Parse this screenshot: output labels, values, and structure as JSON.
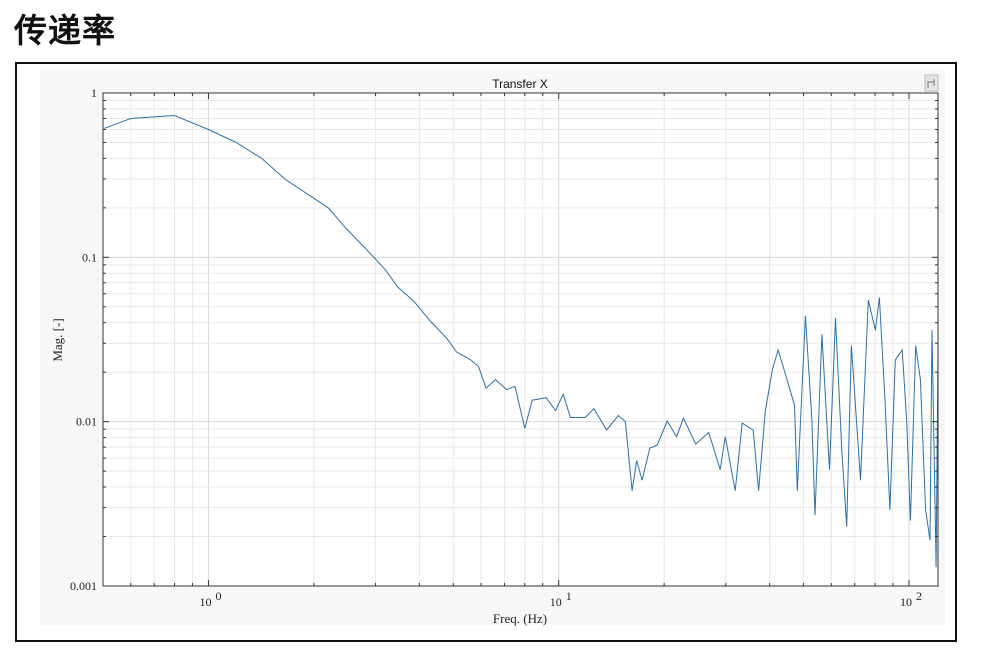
{
  "heading": "传递率",
  "chart_data": {
    "type": "line",
    "title": "Transfer X",
    "xlabel": "Freq. (Hz)",
    "ylabel": "Mag. [-]",
    "xscale": "log",
    "yscale": "log",
    "xlim": [
      0.5,
      121
    ],
    "ylim": [
      0.001,
      1
    ],
    "grid": true,
    "xticks": [
      {
        "value": 1,
        "base": "10",
        "exp": "0"
      },
      {
        "value": 10,
        "base": "10",
        "exp": "1"
      },
      {
        "value": 100,
        "base": "10",
        "exp": "2"
      }
    ],
    "yticks": [
      {
        "value": 1,
        "label": "1"
      },
      {
        "value": 0.1,
        "label": "0.1"
      },
      {
        "value": 0.01,
        "label": "0.01"
      },
      {
        "value": 0.001,
        "label": "0.001"
      }
    ],
    "series_color": "#2f6fa6",
    "series": [
      {
        "name": "Transfer X",
        "x": [
          0.505,
          0.6,
          0.8,
          1.0,
          1.2,
          1.42,
          1.65,
          2.2,
          2.47,
          2.8,
          3.2,
          3.47,
          3.86,
          4.3,
          4.8,
          5.1,
          5.6,
          5.9,
          6.2,
          6.6,
          7.1,
          7.5,
          8.0,
          8.4,
          9.2,
          9.8,
          10.3,
          10.8,
          11.9,
          12.6,
          13.7,
          14.8,
          15.5,
          16.2,
          16.7,
          17.3,
          18.2,
          19.1,
          20.4,
          21.7,
          22.7,
          24.6,
          26.8,
          28.9,
          29.9,
          31.9,
          33.4,
          35.9,
          37.2,
          38.9,
          40.7,
          42.3,
          44.4,
          47.1,
          48.0,
          50.6,
          52.8,
          53.9,
          56.4,
          59.3,
          61.7,
          64.3,
          66.4,
          68.5,
          72.7,
          76.5,
          80.2,
          82.3,
          85.4,
          88.2,
          91.4,
          95.6,
          98.5,
          100.9,
          104.5,
          107.8,
          111.5,
          114.8,
          116.3,
          119.5,
          121
        ],
        "y": [
          0.61,
          0.7,
          0.73,
          0.6,
          0.5,
          0.4,
          0.3,
          0.2,
          0.15,
          0.114,
          0.084,
          0.066,
          0.054,
          0.041,
          0.032,
          0.0266,
          0.0238,
          0.0217,
          0.016,
          0.018,
          0.0157,
          0.0164,
          0.0091,
          0.0135,
          0.014,
          0.0117,
          0.0147,
          0.0106,
          0.0106,
          0.012,
          0.0089,
          0.0109,
          0.01,
          0.0038,
          0.0058,
          0.0044,
          0.0069,
          0.0072,
          0.0101,
          0.0081,
          0.0105,
          0.0073,
          0.0086,
          0.0051,
          0.0081,
          0.0038,
          0.0098,
          0.0089,
          0.0038,
          0.0117,
          0.0206,
          0.0273,
          0.0194,
          0.0126,
          0.0038,
          0.044,
          0.0105,
          0.0027,
          0.034,
          0.0051,
          0.0427,
          0.0067,
          0.0023,
          0.029,
          0.0044,
          0.055,
          0.036,
          0.057,
          0.0135,
          0.0029,
          0.0237,
          0.0273,
          0.0101,
          0.0025,
          0.029,
          0.018,
          0.0029,
          0.0019,
          0.036,
          0.0013,
          0.027
        ]
      }
    ]
  }
}
